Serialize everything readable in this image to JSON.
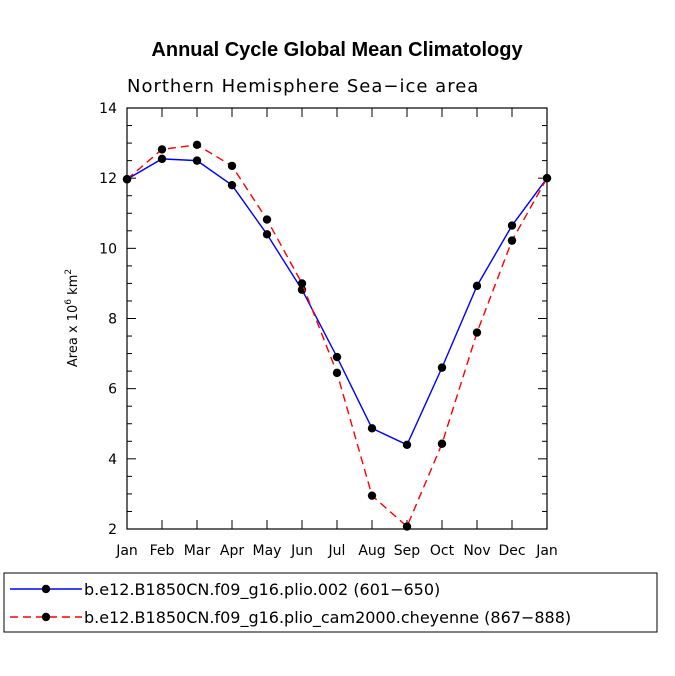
{
  "chart_data": {
    "type": "line",
    "title": "Annual Cycle Global Mean Climatology",
    "subtitle": "Northern Hemisphere Sea−ice area",
    "ylabel_main": "Area x 10",
    "ylabel_exp": "6",
    "ylabel_unit": " km",
    "ylabel_unit_exp": "2",
    "xlabel": "",
    "categories": [
      "Jan",
      "Feb",
      "Mar",
      "Apr",
      "May",
      "Jun",
      "Jul",
      "Aug",
      "Sep",
      "Oct",
      "Nov",
      "Dec",
      "Jan"
    ],
    "ylim": [
      2,
      14
    ],
    "yticks": [
      2,
      4,
      6,
      8,
      10,
      12,
      14
    ],
    "series": [
      {
        "name": "b.e12.B1850CN.f09_g16.plio.002 (601−650)",
        "color": "#0000ff",
        "dash": "solid",
        "values": [
          11.97,
          12.55,
          12.5,
          11.8,
          10.4,
          8.82,
          6.9,
          4.87,
          4.4,
          6.6,
          8.93,
          10.65,
          12.0
        ]
      },
      {
        "name": "b.e12.B1850CN.f09_g16.plio_cam2000.cheyenne (867−888)",
        "color": "#ff0000",
        "dash": "dashed",
        "values": [
          11.97,
          12.82,
          12.95,
          12.35,
          10.82,
          9.0,
          6.45,
          2.95,
          2.07,
          4.43,
          7.6,
          10.22,
          12.0
        ]
      }
    ],
    "legend_position": "bottom-left"
  }
}
